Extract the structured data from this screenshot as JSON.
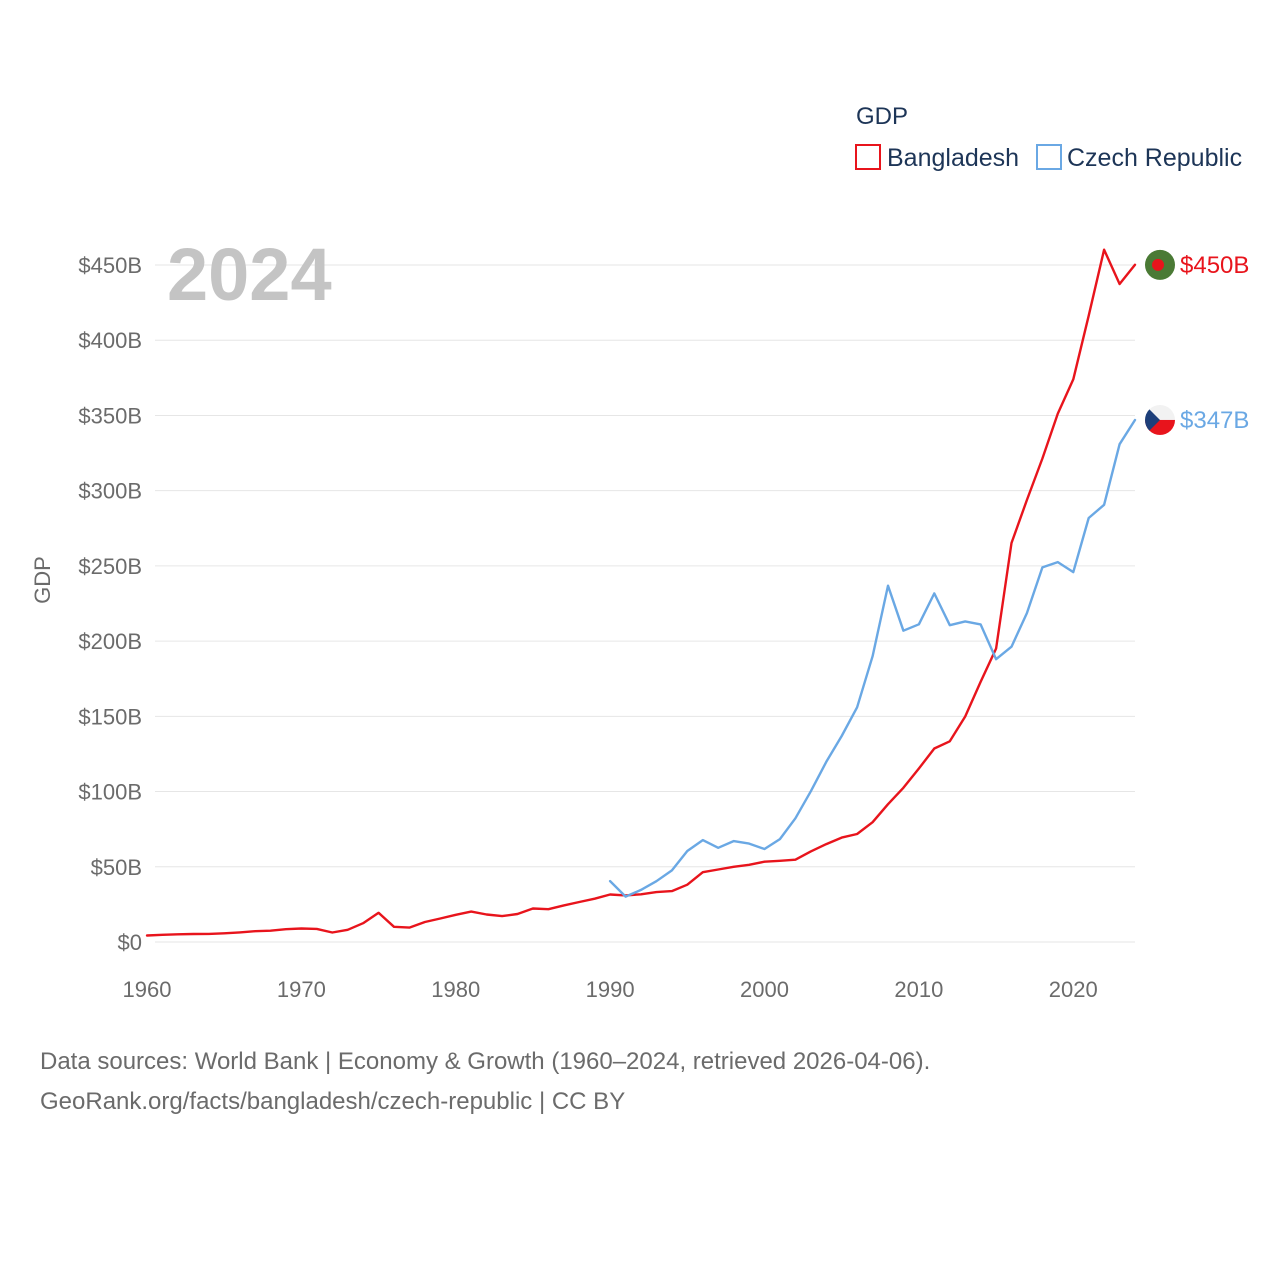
{
  "legend": {
    "title": "GDP",
    "items": [
      {
        "label": "Bangladesh",
        "color": "#e8141c"
      },
      {
        "label": "Czech Republic",
        "color": "#6aa8e4"
      }
    ]
  },
  "year_label": "2024",
  "source": {
    "line1": "Data sources: World Bank | Economy & Growth (1960–2024, retrieved 2026-04-06).",
    "line2": "GeoRank.org/facts/bangladesh/czech-republic | CC BY"
  },
  "chart_data": {
    "type": "line",
    "title": "GDP",
    "xlabel": "",
    "ylabel": "GDP",
    "xlim": [
      1960,
      2024
    ],
    "ylim": [
      0,
      450
    ],
    "x_ticks": [
      1960,
      1970,
      1980,
      1990,
      2000,
      2010,
      2020
    ],
    "y_ticks": [
      0,
      50,
      100,
      150,
      200,
      250,
      300,
      350,
      400,
      450
    ],
    "y_tick_labels": [
      "$0",
      "$50B",
      "$100B",
      "$150B",
      "$200B",
      "$250B",
      "$300B",
      "$350B",
      "$400B",
      "$450B"
    ],
    "units": "billions USD",
    "series": [
      {
        "name": "Bangladesh",
        "color": "#e8141c",
        "end_label": "$450B",
        "x": [
          1960,
          1961,
          1962,
          1963,
          1964,
          1965,
          1966,
          1967,
          1968,
          1969,
          1970,
          1971,
          1972,
          1973,
          1974,
          1975,
          1976,
          1977,
          1978,
          1979,
          1980,
          1981,
          1982,
          1983,
          1984,
          1985,
          1986,
          1987,
          1988,
          1989,
          1990,
          1991,
          1992,
          1993,
          1994,
          1995,
          1996,
          1997,
          1998,
          1999,
          2000,
          2001,
          2002,
          2003,
          2004,
          2005,
          2006,
          2007,
          2008,
          2009,
          2010,
          2011,
          2012,
          2013,
          2014,
          2015,
          2016,
          2017,
          2018,
          2019,
          2020,
          2021,
          2022,
          2023,
          2024
        ],
        "values": [
          4.3,
          4.8,
          5.1,
          5.3,
          5.4,
          5.8,
          6.4,
          7.2,
          7.5,
          8.5,
          9.0,
          8.7,
          6.3,
          8.1,
          12.5,
          19.4,
          10.1,
          9.6,
          13.3,
          15.6,
          18.1,
          20.2,
          18.3,
          17.2,
          18.6,
          22.3,
          21.8,
          24.3,
          26.6,
          28.8,
          31.6,
          31.0,
          31.7,
          33.2,
          33.8,
          38.1,
          46.4,
          48.2,
          50.0,
          51.3,
          53.4,
          54.0,
          54.7,
          60.2,
          65.1,
          69.4,
          71.8,
          79.6,
          91.6,
          102.5,
          115.3,
          128.6,
          133.4,
          149.9,
          172.9,
          195.1,
          265.2,
          293.8,
          321.4,
          351.2,
          374.0,
          416.3,
          460.2,
          437.4,
          450.1
        ]
      },
      {
        "name": "Czech Republic",
        "color": "#6aa8e4",
        "end_label": "$347B",
        "x": [
          1990,
          1991,
          1992,
          1993,
          1994,
          1995,
          1996,
          1997,
          1998,
          1999,
          2000,
          2001,
          2002,
          2003,
          2004,
          2005,
          2006,
          2007,
          2008,
          2009,
          2010,
          2011,
          2012,
          2013,
          2014,
          2015,
          2016,
          2017,
          2018,
          2019,
          2020,
          2021,
          2022,
          2023,
          2024
        ],
        "values": [
          40.5,
          30.2,
          34.6,
          40.4,
          47.6,
          60.5,
          67.7,
          62.6,
          67.1,
          65.4,
          61.8,
          68.4,
          82.2,
          100.2,
          119.8,
          136.9,
          156.0,
          190.0,
          236.8,
          206.9,
          211.2,
          231.7,
          210.6,
          213.1,
          211.1,
          188.0,
          196.3,
          218.6,
          249.0,
          252.5,
          245.9,
          281.8,
          290.6,
          330.9,
          347.0
        ]
      }
    ]
  }
}
